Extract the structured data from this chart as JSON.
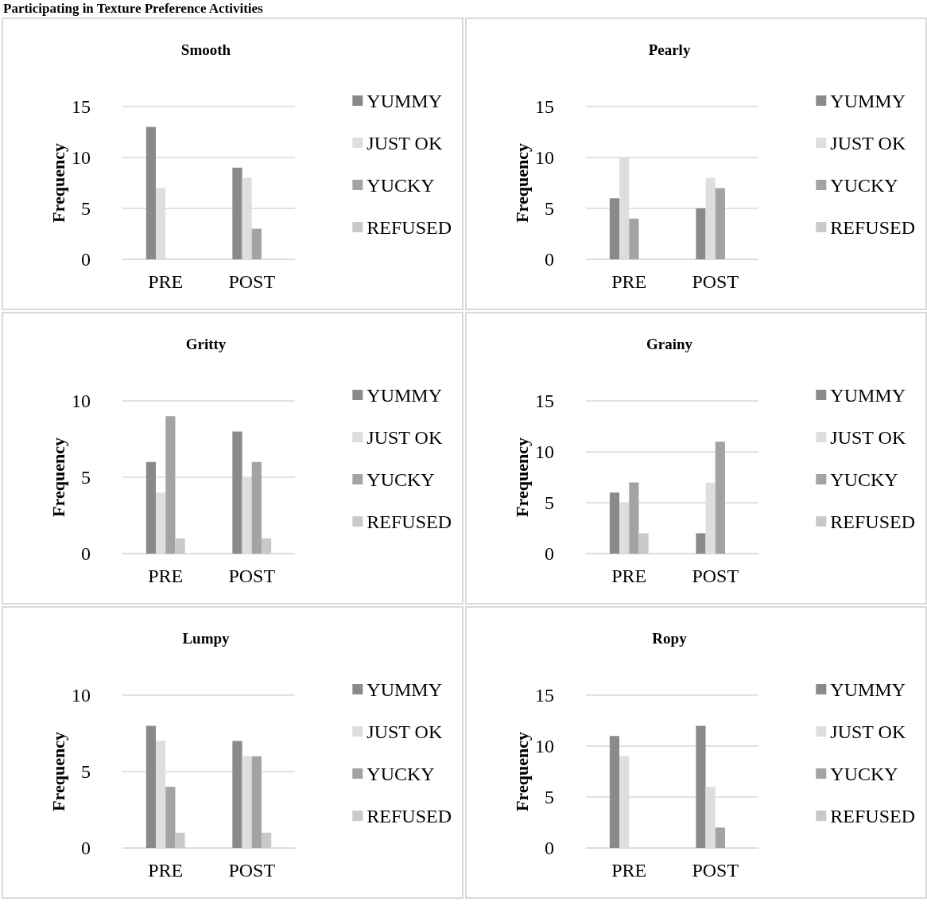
{
  "chart_data": [
    {
      "type": "bar",
      "title": "Smooth",
      "ylabel": "Frequency",
      "annotations": [
        "Participating in Texture Preference Activities"
      ],
      "categories": [
        "PRE",
        "POST"
      ],
      "ylim": [
        0,
        15
      ],
      "yticks": [
        0,
        5,
        10,
        15
      ],
      "grid": "y",
      "legend": "right",
      "series": [
        {
          "name": "YUMMY",
          "color": "#8a8a8a",
          "values": [
            13,
            9
          ]
        },
        {
          "name": "JUST OK",
          "color": "#dedede",
          "values": [
            7,
            8
          ]
        },
        {
          "name": "YUCKY",
          "color": "#a3a3a3",
          "values": [
            0,
            3
          ]
        },
        {
          "name": "REFUSED",
          "color": "#c9c9c9",
          "values": [
            0,
            0
          ]
        }
      ]
    },
    {
      "type": "bar",
      "title": "Pearly",
      "ylabel": "Frequency",
      "categories": [
        "PRE",
        "POST"
      ],
      "ylim": [
        0,
        15
      ],
      "yticks": [
        0,
        5,
        10,
        15
      ],
      "grid": "y",
      "legend": "right",
      "series": [
        {
          "name": "YUMMY",
          "color": "#8a8a8a",
          "values": [
            6,
            5
          ]
        },
        {
          "name": "JUST OK",
          "color": "#dedede",
          "values": [
            10,
            8
          ]
        },
        {
          "name": "YUCKY",
          "color": "#a3a3a3",
          "values": [
            4,
            7
          ]
        },
        {
          "name": "REFUSED",
          "color": "#c9c9c9",
          "values": [
            0,
            0
          ]
        }
      ]
    },
    {
      "type": "bar",
      "title": "Gritty",
      "ylabel": "Frequency",
      "categories": [
        "PRE",
        "POST"
      ],
      "ylim": [
        0,
        10
      ],
      "yticks": [
        0,
        5,
        10
      ],
      "grid": "y",
      "legend": "right",
      "series": [
        {
          "name": "YUMMY",
          "color": "#8a8a8a",
          "values": [
            6,
            8
          ]
        },
        {
          "name": "JUST OK",
          "color": "#dedede",
          "values": [
            4,
            5
          ]
        },
        {
          "name": "YUCKY",
          "color": "#a3a3a3",
          "values": [
            9,
            6
          ]
        },
        {
          "name": "REFUSED",
          "color": "#c9c9c9",
          "values": [
            1,
            1
          ]
        }
      ]
    },
    {
      "type": "bar",
      "title": "Grainy",
      "ylabel": "Frequency",
      "categories": [
        "PRE",
        "POST"
      ],
      "ylim": [
        0,
        15
      ],
      "yticks": [
        0,
        5,
        10,
        15
      ],
      "grid": "y",
      "legend": "right",
      "series": [
        {
          "name": "YUMMY",
          "color": "#8a8a8a",
          "values": [
            6,
            2
          ]
        },
        {
          "name": "JUST OK",
          "color": "#dedede",
          "values": [
            5,
            7
          ]
        },
        {
          "name": "YUCKY",
          "color": "#a3a3a3",
          "values": [
            7,
            11
          ]
        },
        {
          "name": "REFUSED",
          "color": "#c9c9c9",
          "values": [
            2,
            0
          ]
        }
      ]
    },
    {
      "type": "bar",
      "title": "Lumpy",
      "ylabel": "Frequency",
      "categories": [
        "PRE",
        "POST"
      ],
      "ylim": [
        0,
        10
      ],
      "yticks": [
        0,
        5,
        10
      ],
      "grid": "y",
      "legend": "right",
      "series": [
        {
          "name": "YUMMY",
          "color": "#8a8a8a",
          "values": [
            8,
            7
          ]
        },
        {
          "name": "JUST OK",
          "color": "#dedede",
          "values": [
            7,
            6
          ]
        },
        {
          "name": "YUCKY",
          "color": "#a3a3a3",
          "values": [
            4,
            6
          ]
        },
        {
          "name": "REFUSED",
          "color": "#c9c9c9",
          "values": [
            1,
            1
          ]
        }
      ]
    },
    {
      "type": "bar",
      "title": "Ropy",
      "ylabel": "Frequency",
      "categories": [
        "PRE",
        "POST"
      ],
      "ylim": [
        0,
        15
      ],
      "yticks": [
        0,
        5,
        10,
        15
      ],
      "grid": "y",
      "legend": "right",
      "series": [
        {
          "name": "YUMMY",
          "color": "#8a8a8a",
          "values": [
            11,
            12
          ]
        },
        {
          "name": "JUST OK",
          "color": "#dedede",
          "values": [
            9,
            6
          ]
        },
        {
          "name": "YUCKY",
          "color": "#a3a3a3",
          "values": [
            0,
            2
          ]
        },
        {
          "name": "REFUSED",
          "color": "#c9c9c9",
          "values": [
            0,
            0
          ]
        }
      ]
    }
  ]
}
